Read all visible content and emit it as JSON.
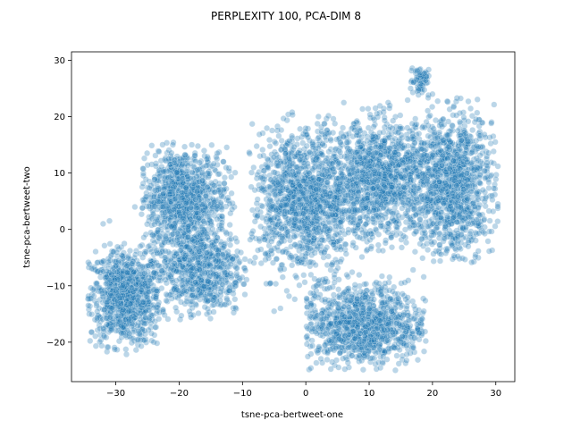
{
  "chart_data": {
    "type": "scatter",
    "title": "PERPLEXITY 100, PCA-DIM 8",
    "xlabel": "tsne-pca-bertweet-one",
    "ylabel": "tsne-pca-bertweet-two",
    "xlim": [
      -37,
      33
    ],
    "ylim": [
      -27,
      31.5
    ],
    "xticks": [
      -30,
      -20,
      -10,
      0,
      10,
      20,
      30
    ],
    "yticks": [
      -20,
      -10,
      0,
      10,
      20,
      30
    ],
    "grid": false,
    "point_color": "#1f77b4",
    "point_alpha": 0.3,
    "clusters": [
      {
        "cx": -28.5,
        "cy": -12,
        "sx": 2.8,
        "sy": 4.2,
        "n": 900,
        "xmin": -34.5,
        "xmax": -22.5,
        "ymin": -22.5,
        "ymax": -2.5
      },
      {
        "cx": -19.5,
        "cy": 5.5,
        "sx": 3.5,
        "sy": 4.5,
        "n": 900,
        "xmin": -26,
        "xmax": -11,
        "ymin": -6,
        "ymax": 15.5
      },
      {
        "cx": -17,
        "cy": -7,
        "sx": 3.5,
        "sy": 4.2,
        "n": 700,
        "xmin": -25,
        "xmax": -9,
        "ymin": -16,
        "ymax": 2
      },
      {
        "cx": 0,
        "cy": 5,
        "sx": 4.2,
        "sy": 6.2,
        "n": 1300,
        "xmin": -9,
        "xmax": 10,
        "ymin": -15,
        "ymax": 21
      },
      {
        "cx": 12,
        "cy": 9,
        "sx": 4.0,
        "sy": 5.2,
        "n": 1100,
        "xmin": 3,
        "xmax": 21,
        "ymin": -4,
        "ymax": 22
      },
      {
        "cx": 23,
        "cy": 8,
        "sx": 3.3,
        "sy": 6.5,
        "n": 1100,
        "xmin": 15,
        "xmax": 30.5,
        "ymin": -6,
        "ymax": 23.5
      },
      {
        "cx": 9,
        "cy": -17,
        "sx": 5.0,
        "sy": 3.6,
        "n": 1000,
        "xmin": 0,
        "xmax": 19,
        "ymin": -25,
        "ymax": -4
      },
      {
        "cx": 18,
        "cy": 26.5,
        "sx": 0.8,
        "sy": 1.6,
        "n": 70,
        "xmin": 16.5,
        "xmax": 19.5,
        "ymin": 23.5,
        "ymax": 29
      }
    ],
    "extra_points": [
      [
        -24,
        -20
      ],
      [
        -23.5,
        -20.2
      ],
      [
        -8,
        -5
      ],
      [
        -6,
        -2
      ],
      [
        -5,
        -14.5
      ],
      [
        -4,
        -14
      ],
      [
        17,
        -21
      ],
      [
        -14,
        13.5
      ],
      [
        -13,
        12
      ],
      [
        -32,
        1
      ],
      [
        -31,
        1.5
      ],
      [
        -21,
        15
      ],
      [
        -27,
        4
      ],
      [
        -6,
        11
      ],
      [
        6,
        22.5
      ],
      [
        11,
        21.5
      ],
      [
        13,
        22.5
      ],
      [
        27.5,
        2.5
      ],
      [
        20,
        24
      ],
      [
        2,
        20
      ]
    ]
  }
}
